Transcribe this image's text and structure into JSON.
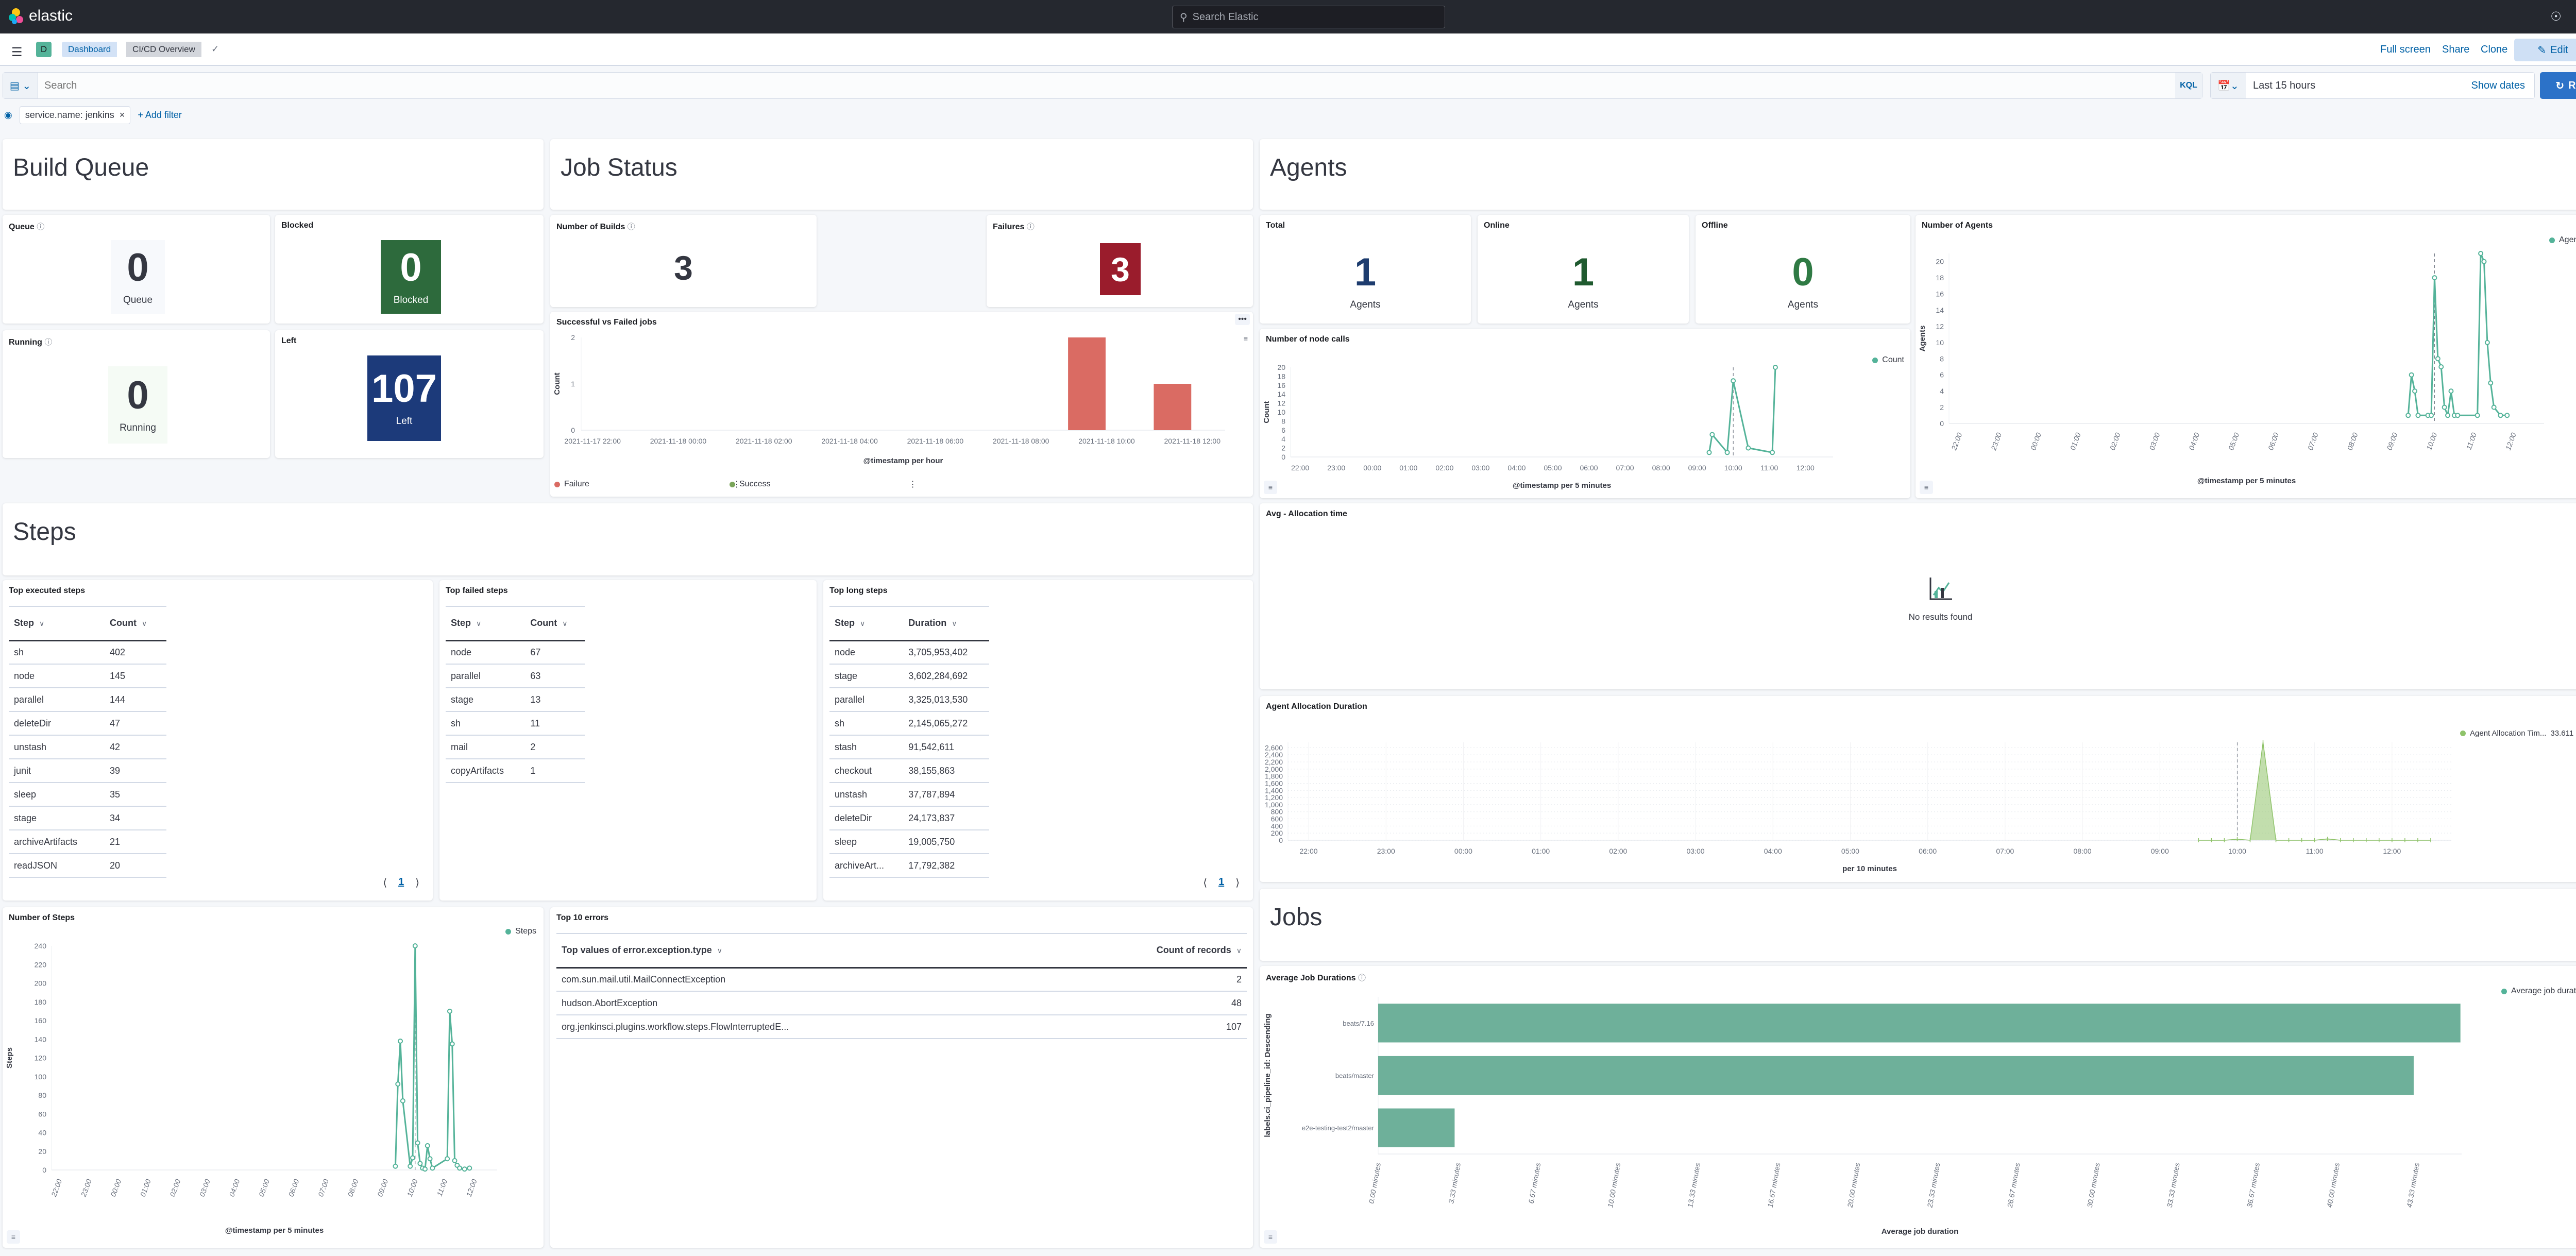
{
  "nav": {
    "brand": "elastic",
    "search_placeholder": "Search Elastic",
    "avatar_letter": "e"
  },
  "breadcrumb": {
    "space_badge": "D",
    "items": [
      "Dashboard",
      "CI/CD Overview"
    ]
  },
  "actions": {
    "full_screen": "Full screen",
    "share": "Share",
    "clone": "Clone",
    "edit": "Edit"
  },
  "query": {
    "placeholder": "Search",
    "language": "KQL",
    "time_range": "Last 15 hours",
    "show_dates": "Show dates",
    "refresh": "Refresh"
  },
  "filters": {
    "items": [
      "service.name: jenkins"
    ],
    "add_filter": "+ Add filter"
  },
  "colors": {
    "accent": "#2c72c8",
    "series_green": "#54b399",
    "failure": "#da6b63",
    "success": "#7aa55a",
    "blocked": "#2d6a3c",
    "left": "#1c3a7a",
    "failures": "#9a1c2c",
    "total": "#1d3c6e",
    "online": "#1f5a2f",
    "offline": "#2f7a44",
    "allocation": "#8fc36a"
  },
  "sections": {
    "build_queue": "Build Queue",
    "job_status": "Job Status",
    "agents": "Agents",
    "steps": "Steps",
    "jobs": "Jobs"
  },
  "build_queue": {
    "queue": {
      "title": "Queue",
      "value": "0",
      "label": "Queue"
    },
    "blocked": {
      "title": "Blocked",
      "value": "0",
      "label": "Blocked"
    },
    "running": {
      "title": "Running",
      "value": "0",
      "label": "Running"
    },
    "left": {
      "title": "Left",
      "value": "107",
      "label": "Left"
    }
  },
  "job_status": {
    "builds": {
      "title": "Number of Builds",
      "value": "3"
    },
    "failures": {
      "title": "Failures",
      "value": "3"
    }
  },
  "agents": {
    "total": {
      "title": "Total",
      "value": "1",
      "label": "Agents"
    },
    "online": {
      "title": "Online",
      "value": "1",
      "label": "Agents"
    },
    "offline": {
      "title": "Offline",
      "value": "0",
      "label": "Agents"
    },
    "avg_allocation": {
      "title": "Avg - Allocation time",
      "empty": "No results found"
    }
  },
  "tables": {
    "executed": {
      "title": "Top executed steps",
      "columns": [
        "Step",
        "Count"
      ],
      "rows": [
        [
          "sh",
          "402"
        ],
        [
          "node",
          "145"
        ],
        [
          "parallel",
          "144"
        ],
        [
          "deleteDir",
          "47"
        ],
        [
          "unstash",
          "42"
        ],
        [
          "junit",
          "39"
        ],
        [
          "sleep",
          "35"
        ],
        [
          "stage",
          "34"
        ],
        [
          "archiveArtifacts",
          "21"
        ],
        [
          "readJSON",
          "20"
        ]
      ],
      "page": "1"
    },
    "failed": {
      "title": "Top failed steps",
      "columns": [
        "Step",
        "Count"
      ],
      "rows": [
        [
          "node",
          "67"
        ],
        [
          "parallel",
          "63"
        ],
        [
          "stage",
          "13"
        ],
        [
          "sh",
          "11"
        ],
        [
          "mail",
          "2"
        ],
        [
          "copyArtifacts",
          "1"
        ]
      ]
    },
    "long": {
      "title": "Top long steps",
      "columns": [
        "Step",
        "Duration"
      ],
      "rows": [
        [
          "node",
          "3,705,953,402"
        ],
        [
          "stage",
          "3,602,284,692"
        ],
        [
          "parallel",
          "3,325,013,530"
        ],
        [
          "sh",
          "2,145,065,272"
        ],
        [
          "stash",
          "91,542,611"
        ],
        [
          "checkout",
          "38,155,863"
        ],
        [
          "unstash",
          "37,787,894"
        ],
        [
          "deleteDir",
          "24,173,837"
        ],
        [
          "sleep",
          "19,005,750"
        ],
        [
          "archiveArt...",
          "17,792,382"
        ]
      ],
      "page": "1"
    },
    "errors": {
      "title": "Top 10 errors",
      "columns": [
        "Top values of error.exception.type",
        "Count of records"
      ],
      "rows": [
        [
          "com.sun.mail.util.MailConnectException",
          "2"
        ],
        [
          "hudson.AbortException",
          "48"
        ],
        [
          "org.jenkinsci.plugins.workflow.steps.FlowInterruptedE...",
          "107"
        ]
      ]
    }
  },
  "chart_data": [
    {
      "id": "svf",
      "type": "bar",
      "title": "Successful vs Failed jobs",
      "xlabel": "@timestamp per hour",
      "ylabel": "Count",
      "ylim": [
        0,
        2
      ],
      "yticks": [
        "0",
        "1",
        "2"
      ],
      "xticks": [
        "2021-11-17 22:00",
        "2021-11-18 00:00",
        "2021-11-18 02:00",
        "2021-11-18 04:00",
        "2021-11-18 06:00",
        "2021-11-18 08:00",
        "2021-11-18 10:00",
        "2021-11-18 12:00"
      ],
      "legend": [
        "Failure",
        "Success"
      ],
      "series": [
        {
          "name": "Failure",
          "x": [
            "09:00",
            "11:00"
          ],
          "values": [
            2,
            1
          ]
        },
        {
          "name": "Success",
          "x": [],
          "values": []
        }
      ]
    },
    {
      "id": "nodecalls",
      "type": "line",
      "title": "Number of node calls",
      "xlabel": "@timestamp per 5 minutes",
      "ylabel": "Count",
      "ylim": [
        0,
        20
      ],
      "yticks": [
        "0",
        "2",
        "4",
        "6",
        "8",
        "10",
        "12",
        "14",
        "16",
        "18",
        "20"
      ],
      "xticks": [
        "22:00",
        "23:00",
        "00:00",
        "01:00",
        "02:00",
        "03:00",
        "04:00",
        "05:00",
        "06:00",
        "07:00",
        "08:00",
        "09:00",
        "10:00",
        "11:00",
        "12:00"
      ],
      "marker": "10:00",
      "series": [
        {
          "name": "Count",
          "x": [
            "09:20",
            "09:25",
            "09:50",
            "10:00",
            "10:25",
            "11:05",
            "11:10"
          ],
          "values": [
            1,
            5,
            1,
            17,
            2,
            1,
            20
          ]
        }
      ]
    },
    {
      "id": "agentsline",
      "type": "line",
      "title": "Number of Agents",
      "xlabel": "@timestamp per 5 minutes",
      "ylabel": "Agents",
      "ylim": [
        0,
        21
      ],
      "yticks": [
        "0",
        "2",
        "4",
        "6",
        "8",
        "10",
        "12",
        "14",
        "16",
        "18",
        "20"
      ],
      "xticks": [
        "22:00",
        "23:00",
        "00:00",
        "01:00",
        "02:00",
        "03:00",
        "04:00",
        "05:00",
        "06:00",
        "07:00",
        "08:00",
        "09:00",
        "10:00",
        "11:00",
        "12:00"
      ],
      "marker": "10:00",
      "series": [
        {
          "name": "Agents",
          "x": [
            "09:20",
            "09:25",
            "09:30",
            "09:35",
            "09:50",
            "09:55",
            "10:00",
            "10:05",
            "10:10",
            "10:15",
            "10:20",
            "10:25",
            "10:30",
            "10:35",
            "11:05",
            "11:10",
            "11:15",
            "11:20",
            "11:25",
            "11:30",
            "11:40",
            "11:50"
          ],
          "values": [
            1,
            6,
            4,
            1,
            1,
            1,
            18,
            8,
            7,
            2,
            1,
            4,
            1,
            1,
            1,
            21,
            20,
            10,
            5,
            2,
            1,
            1
          ]
        }
      ]
    },
    {
      "id": "alloc",
      "type": "area",
      "title": "Agent Allocation Duration",
      "xlabel": "per 10 minutes",
      "ylabel": "",
      "ylim": [
        0,
        2750
      ],
      "yticks": [
        "0",
        "200",
        "400",
        "600",
        "800",
        "1,000",
        "1,200",
        "1,400",
        "1,600",
        "1,800",
        "2,000",
        "2,200",
        "2,400",
        "2,600"
      ],
      "xticks": [
        "22:00",
        "23:00",
        "00:00",
        "01:00",
        "02:00",
        "03:00",
        "04:00",
        "05:00",
        "06:00",
        "07:00",
        "08:00",
        "09:00",
        "10:00",
        "11:00",
        "12:00"
      ],
      "marker": "10:00",
      "legend_value": "33.611",
      "series": [
        {
          "name": "Agent Allocation Tim...",
          "x": [
            "09:30",
            "09:40",
            "09:50",
            "10:00",
            "10:10",
            "10:20",
            "10:30",
            "10:40",
            "10:50",
            "11:00",
            "11:10",
            "11:20",
            "11:30",
            "11:40",
            "11:50",
            "12:00",
            "12:10",
            "12:20",
            "12:30"
          ],
          "values": [
            0,
            0,
            0,
            30,
            0,
            2750,
            0,
            0,
            0,
            0,
            40,
            0,
            0,
            0,
            0,
            0,
            0,
            0,
            0
          ]
        }
      ]
    },
    {
      "id": "stepsline",
      "type": "line",
      "title": "Number of Steps",
      "xlabel": "@timestamp per 5 minutes",
      "ylabel": "Steps",
      "ylim": [
        0,
        240
      ],
      "yticks": [
        "0",
        "20",
        "40",
        "60",
        "80",
        "100",
        "120",
        "140",
        "160",
        "180",
        "200",
        "220",
        "240"
      ],
      "xticks": [
        "22:00",
        "23:00",
        "00:00",
        "01:00",
        "02:00",
        "03:00",
        "04:00",
        "05:00",
        "06:00",
        "07:00",
        "08:00",
        "09:00",
        "10:00",
        "11:00",
        "12:00"
      ],
      "marker": "10:00",
      "series": [
        {
          "name": "Steps",
          "x": [
            "09:20",
            "09:25",
            "09:30",
            "09:35",
            "09:50",
            "09:55",
            "10:00",
            "10:05",
            "10:10",
            "10:15",
            "10:20",
            "10:25",
            "10:30",
            "10:35",
            "11:05",
            "11:10",
            "11:15",
            "11:20",
            "11:25",
            "11:30",
            "11:40",
            "11:50"
          ],
          "values": [
            4,
            92,
            138,
            74,
            4,
            13,
            240,
            29,
            7,
            2,
            1,
            26,
            12,
            2,
            12,
            170,
            135,
            10,
            5,
            2,
            1,
            2
          ]
        }
      ]
    },
    {
      "id": "jobdur",
      "type": "bar",
      "orientation": "horizontal",
      "title": "Average Job Durations",
      "xlabel": "Average job duration",
      "ylabel": "labels.ci_pipeline_id: Descending",
      "xlim": [
        0,
        45.2
      ],
      "xticks": [
        "0.00 minutes",
        "3.33 minutes",
        "6.67 minutes",
        "10.00 minutes",
        "13.33 minutes",
        "16.67 minutes",
        "20.00 minutes",
        "23.33 minutes",
        "26.67 minutes",
        "30.00 minutes",
        "33.33 minutes",
        "36.67 minutes",
        "40.00 minutes",
        "43.33 minutes"
      ],
      "categories": [
        "beats/7.16",
        "beats/master",
        "e2e-testing-test2/master"
      ],
      "series": [
        {
          "name": "Average job duration",
          "values": [
            45.15,
            43.2,
            3.19
          ]
        }
      ]
    }
  ]
}
